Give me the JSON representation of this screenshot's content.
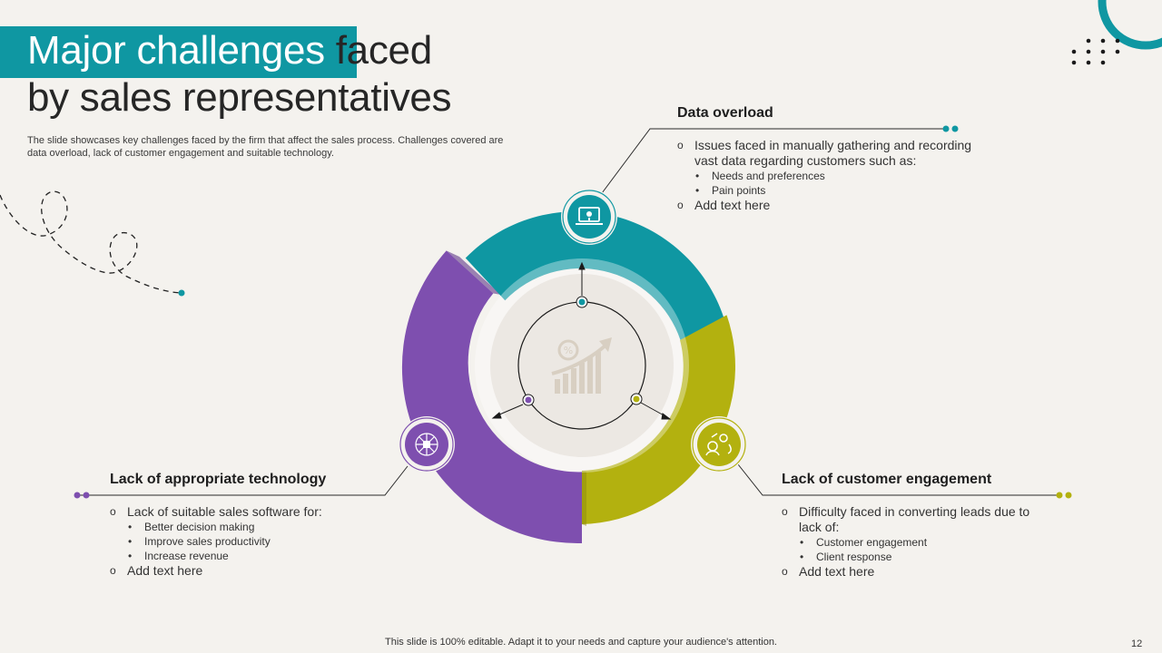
{
  "title": {
    "highlight": "Major challenges",
    "rest1": " faced",
    "line2": "by sales representatives"
  },
  "subtitle": "The slide showcases key challenges faced by the firm that affect the sales process. Challenges covered are data overload, lack of customer engagement and suitable technology.",
  "colors": {
    "teal": "#0f97a2",
    "olive": "#b3b10f",
    "purple": "#7e4faf",
    "background": "#f4f2ee"
  },
  "sections": {
    "data_overload": {
      "title": "Data overload",
      "point1": "Issues faced in manually gathering and recording vast data regarding customers such as:",
      "sub1": "Needs and preferences",
      "sub2": "Pain points",
      "point2": "Add text here",
      "icon": "laptop-alert-icon"
    },
    "customer_engagement": {
      "title": "Lack of customer engagement",
      "point1": "Difficulty faced in converting leads due to lack of:",
      "sub1": "Customer engagement",
      "sub2": "Client response",
      "point2": "Add text here",
      "icon": "people-network-icon"
    },
    "technology": {
      "title": "Lack of appropriate technology",
      "point1": "Lack of suitable sales software for:",
      "sub1": "Better decision making",
      "sub2": "Improve  sales productivity",
      "sub3": "Increase revenue",
      "point2": "Add text here",
      "icon": "technology-network-icon"
    }
  },
  "center_icon": "growth-chart-icon",
  "footer": "This slide is 100% editable. Adapt it to your needs and capture your audience's attention.",
  "page_number": "12"
}
